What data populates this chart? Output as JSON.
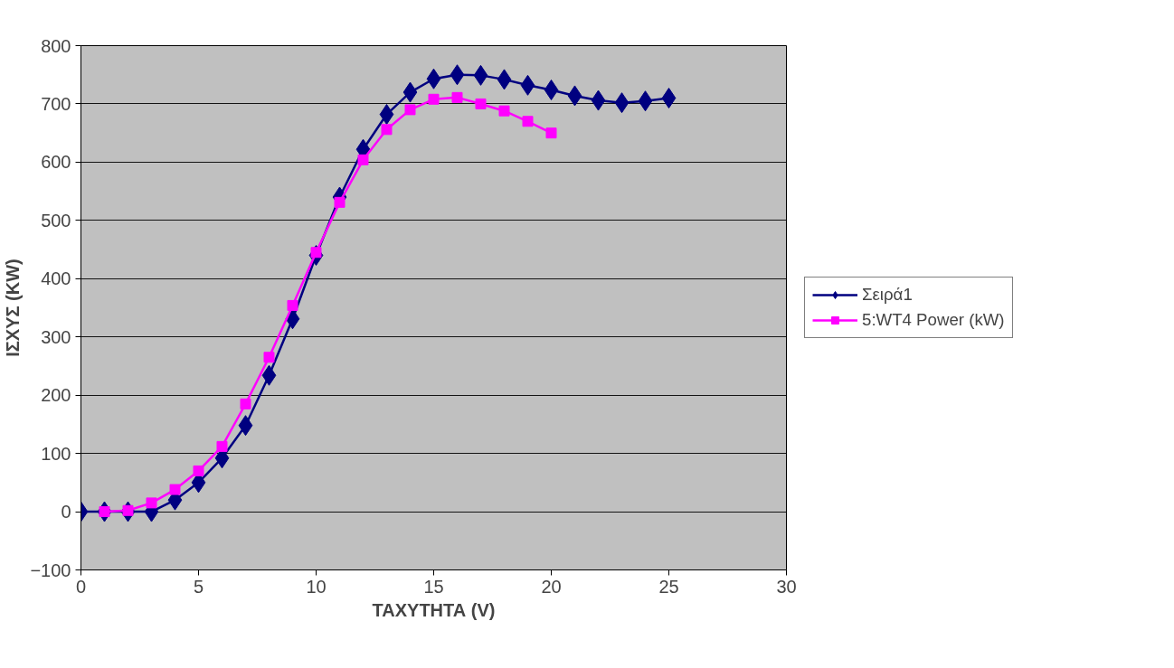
{
  "chart_data": {
    "type": "line",
    "xlabel": "ΤΑΧΥΤΗΤΑ (V)",
    "ylabel": "ΙΣΧΥΣ (KW)",
    "xlim": [
      0,
      30
    ],
    "xticks": [
      0,
      5,
      10,
      15,
      20,
      25,
      30
    ],
    "ylim": [
      -100,
      800
    ],
    "yticks": [
      -100,
      0,
      100,
      200,
      300,
      400,
      500,
      600,
      700,
      800
    ],
    "grid": "y",
    "legend": "right",
    "line_style": "solid",
    "series": [
      {
        "name": "Σειρά1",
        "color": "#000080",
        "marker": "diamond",
        "x": [
          0,
          1,
          2,
          3,
          4,
          5,
          6,
          7,
          8,
          9,
          10,
          11,
          12,
          13,
          14,
          15,
          16,
          17,
          18,
          19,
          20,
          21,
          22,
          23,
          24,
          25
        ],
        "values": [
          0,
          0,
          0,
          0,
          20,
          50,
          92,
          148,
          234,
          331,
          440,
          540,
          622,
          682,
          720,
          743,
          750,
          749,
          742,
          732,
          724,
          714,
          706,
          702,
          705,
          710
        ]
      },
      {
        "name": "5:WT4 Power (kW)",
        "color": "#ff00ff",
        "marker": "square",
        "x": [
          1,
          2,
          3,
          4,
          5,
          6,
          7,
          8,
          9,
          10,
          11,
          12,
          13,
          14,
          15,
          16,
          17,
          18,
          19,
          20
        ],
        "values": [
          0,
          2,
          15,
          38,
          70,
          112,
          185,
          265,
          354,
          445,
          531,
          604,
          656,
          690,
          708,
          711,
          700,
          688,
          670,
          650
        ]
      }
    ]
  }
}
